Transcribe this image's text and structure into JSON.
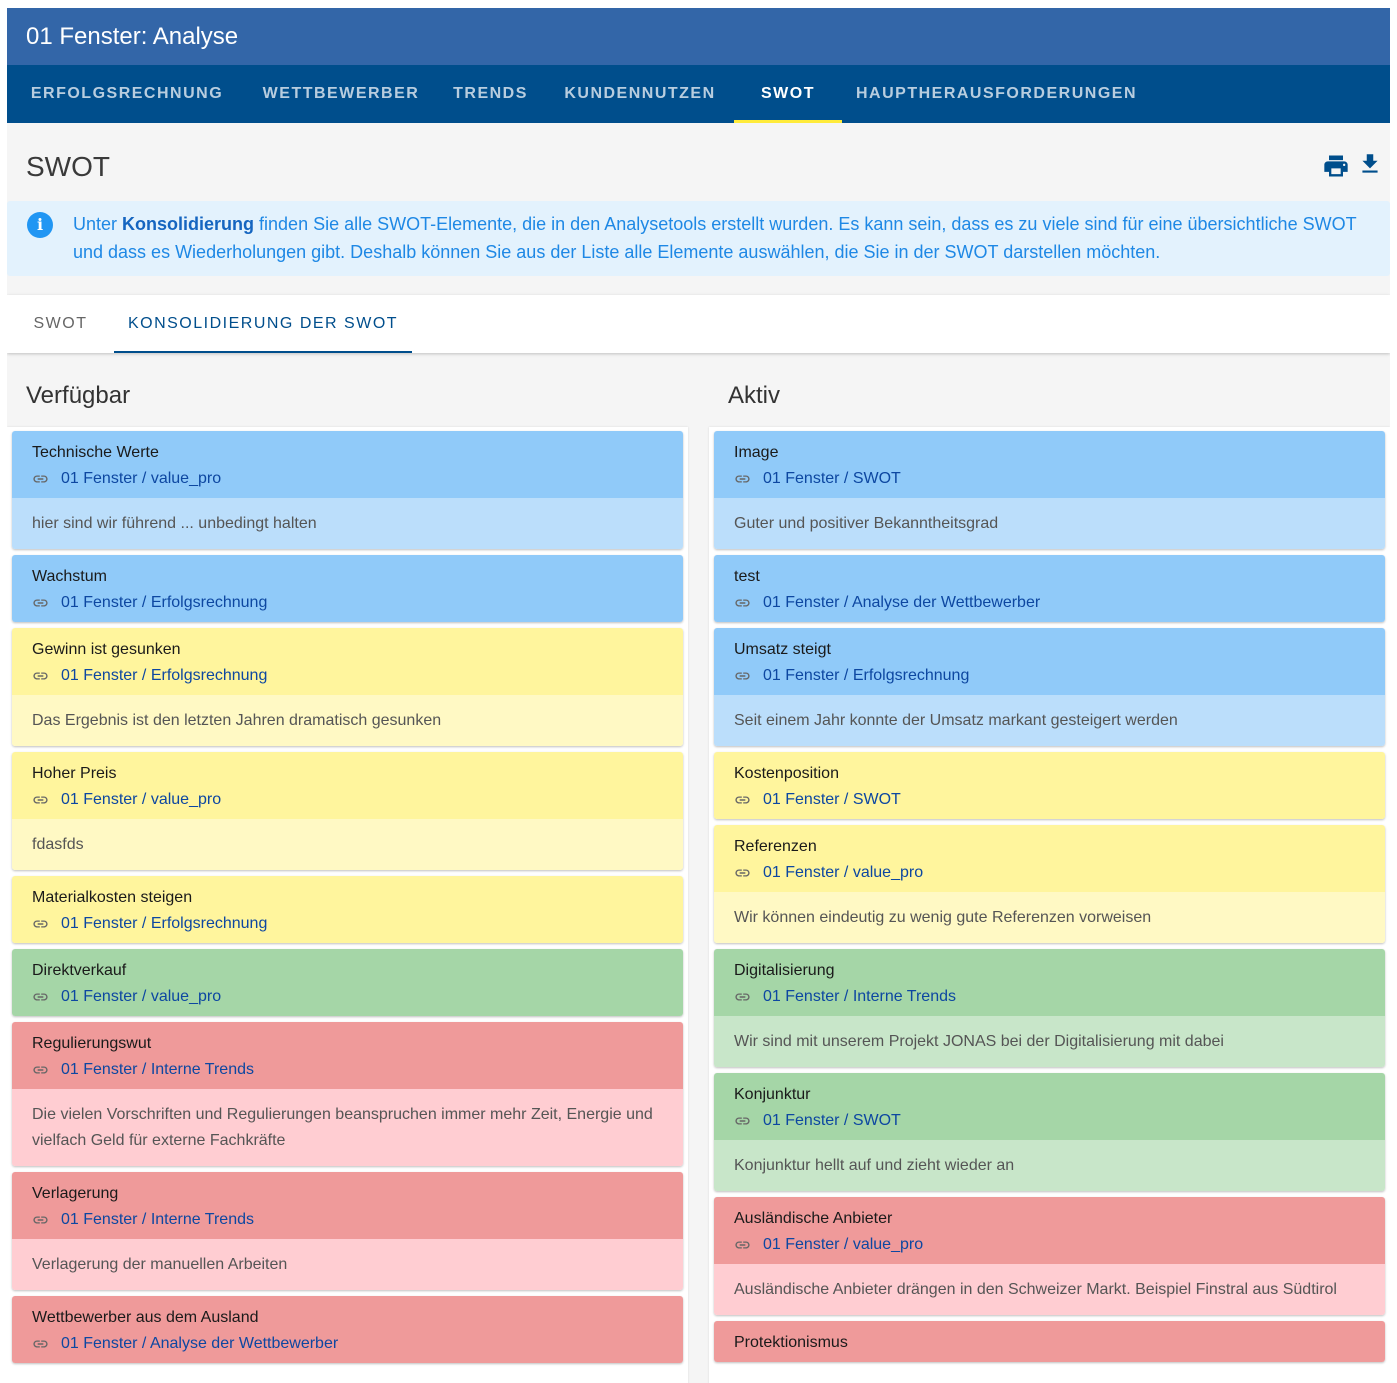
{
  "window": {
    "title": "01 Fenster: Analyse"
  },
  "tabs": [
    {
      "label": "ERFOLGSRECHNUNG"
    },
    {
      "label": "WETTBEWERBER"
    },
    {
      "label": "TRENDS"
    },
    {
      "label": "KUNDENNUTZEN"
    },
    {
      "label": "SWOT",
      "active": true
    },
    {
      "label": "HAUPTHERAUSFORDERUNGEN"
    }
  ],
  "page": {
    "title": "SWOT",
    "icons": [
      "print-icon",
      "download-icon"
    ]
  },
  "info": {
    "icon": "info-icon",
    "prefix": "Unter ",
    "bold": "Konsolidierung",
    "suffix": " finden Sie alle SWOT-Elemente, die in den Analysetools erstellt wurden. Es kann sein, dass es zu viele sind für eine übersichtliche SWOT und dass es Wiederholungen gibt. Deshalb können Sie aus der Liste alle Elemente auswählen, die Sie in der SWOT darstellen möchten."
  },
  "subtabs": [
    {
      "label": "SWOT"
    },
    {
      "label": "KONSOLIDIERUNG DER SWOT",
      "active": true
    }
  ],
  "colors": {
    "blue": "#90caf9",
    "yellow": "#fff59d",
    "green": "#a5d6a7",
    "red": "#ef9a9a",
    "header": "#3366a8",
    "tabbar": "#004e8c",
    "tab_indicator": "#ffeb3b"
  },
  "available": {
    "title": "Verfügbar",
    "items": [
      {
        "title": "Technische Werte",
        "link": "01 Fenster / value_pro",
        "desc": "hier sind wir führend ... unbedingt halten",
        "color": "blue"
      },
      {
        "title": "Wachstum",
        "link": "01 Fenster / Erfolgsrechnung",
        "desc": "",
        "color": "blue"
      },
      {
        "title": "Gewinn ist gesunken",
        "link": "01 Fenster / Erfolgsrechnung",
        "desc": "Das Ergebnis ist den letzten Jahren dramatisch gesunken",
        "color": "yellow"
      },
      {
        "title": "Hoher Preis",
        "link": "01 Fenster / value_pro",
        "desc": "fdasfds",
        "color": "yellow"
      },
      {
        "title": "Materialkosten steigen",
        "link": "01 Fenster / Erfolgsrechnung",
        "desc": "",
        "color": "yellow"
      },
      {
        "title": "Direktverkauf",
        "link": "01 Fenster / value_pro",
        "desc": "",
        "color": "green"
      },
      {
        "title": "Regulierungswut",
        "link": "01 Fenster / Interne Trends",
        "desc": "Die vielen Vorschriften und Regulierungen beanspruchen immer mehr Zeit, Energie und vielfach Geld für externe Fachkräfte",
        "color": "red"
      },
      {
        "title": "Verlagerung",
        "link": "01 Fenster / Interne Trends",
        "desc": "Verlagerung der manuellen Arbeiten",
        "color": "red"
      },
      {
        "title": "Wettbewerber aus dem Ausland",
        "link": "01 Fenster / Analyse der Wettbewerber",
        "desc": "",
        "color": "red"
      }
    ]
  },
  "active": {
    "title": "Aktiv",
    "items": [
      {
        "title": "Image",
        "link": "01 Fenster / SWOT",
        "desc": "Guter und positiver Bekanntheitsgrad",
        "color": "blue"
      },
      {
        "title": "test",
        "link": "01 Fenster / Analyse der Wettbewerber",
        "desc": "",
        "color": "blue"
      },
      {
        "title": "Umsatz steigt",
        "link": "01 Fenster / Erfolgsrechnung",
        "desc": "Seit einem Jahr konnte der Umsatz markant gesteigert werden",
        "color": "blue"
      },
      {
        "title": "Kostenposition",
        "link": "01 Fenster / SWOT",
        "desc": "",
        "color": "yellow"
      },
      {
        "title": "Referenzen",
        "link": "01 Fenster / value_pro",
        "desc": "Wir können eindeutig zu wenig gute Referenzen vorweisen",
        "color": "yellow"
      },
      {
        "title": "Digitalisierung",
        "link": "01 Fenster / Interne Trends",
        "desc": "Wir sind mit unserem Projekt JONAS bei der Digitalisierung mit dabei",
        "color": "green"
      },
      {
        "title": "Konjunktur",
        "link": "01 Fenster / SWOT",
        "desc": "Konjunktur hellt auf und zieht wieder an",
        "color": "green"
      },
      {
        "title": "Ausländische Anbieter",
        "link": "01 Fenster / value_pro",
        "desc": "Ausländische Anbieter drängen in den Schweizer Markt. Beispiel Finstral aus Südtirol",
        "color": "red"
      },
      {
        "title": "Protektionismus",
        "link": "",
        "desc": "",
        "color": "red"
      }
    ]
  }
}
